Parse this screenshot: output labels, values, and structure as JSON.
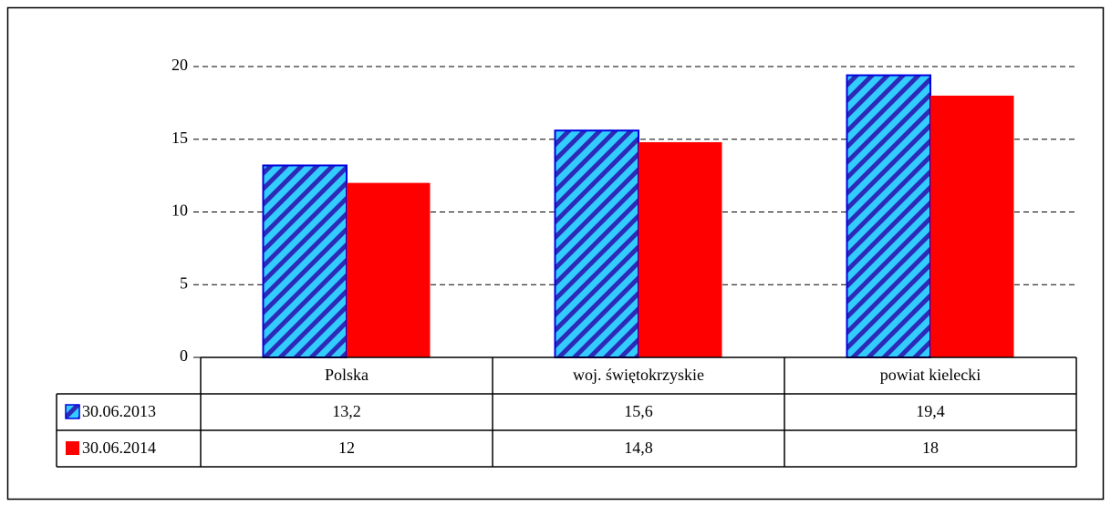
{
  "chart_data": {
    "type": "bar",
    "categories": [
      "Polska",
      "woj. świętokrzyskie",
      "powiat kielecki"
    ],
    "series": [
      {
        "name": "30.06.2013",
        "color": "#33ccff",
        "stripe_color": "#2b2bb8",
        "border_color": "#0000e0",
        "values": [
          13.2,
          15.6,
          19.4
        ],
        "value_labels": [
          "13,2",
          "15,6",
          "19,4"
        ]
      },
      {
        "name": "30.06.2014",
        "color": "#ff0000",
        "values": [
          12,
          14.8,
          18
        ],
        "value_labels": [
          "12",
          "14,8",
          "18"
        ]
      }
    ],
    "ylim": [
      0,
      20
    ],
    "yticks": [
      0,
      5,
      10,
      15,
      20
    ],
    "grid": true
  }
}
